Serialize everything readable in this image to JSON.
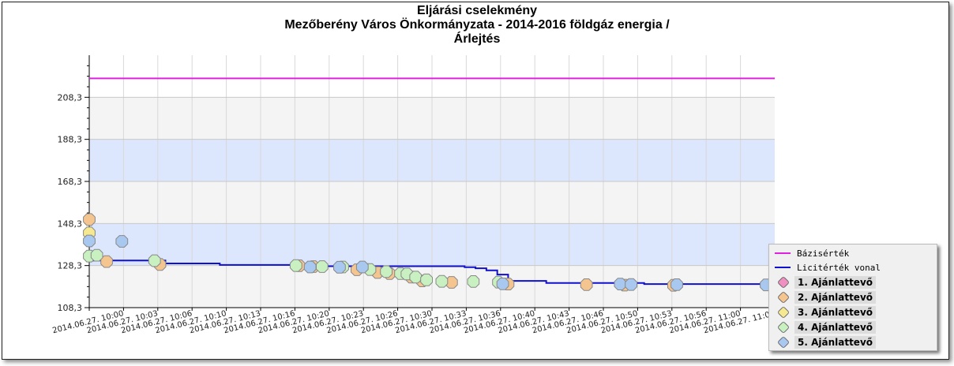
{
  "title": {
    "line1": "Eljárási cselekmény",
    "line2": "Mezőberény Város Önkormányzata - 2014-2016 földgáz energia /",
    "line3": "Árlejtés"
  },
  "chart_data": {
    "type": "line",
    "ylim": [
      108.3,
      228.3
    ],
    "yticks": [
      "108,3",
      "128,3",
      "148,3",
      "168,3",
      "188,3",
      "208,3"
    ],
    "ytick_values": [
      108.3,
      128.3,
      148.3,
      168.3,
      188.3,
      208.3
    ],
    "xticks": [
      "2014.06.27. 10:00",
      "2014.06.27. 10:03",
      "2014.06.27. 10:06",
      "2014.06.27. 10:10",
      "2014.06.27. 10:13",
      "2014.06.27. 10:16",
      "2014.06.27. 10:20",
      "2014.06.27. 10:23",
      "2014.06.27. 10:26",
      "2014.06.27. 10:30",
      "2014.06.27. 10:33",
      "2014.06.27. 10:36",
      "2014.06.27. 10:40",
      "2014.06.27. 10:43",
      "2014.06.27. 10:46",
      "2014.06.27. 10:50",
      "2014.06.27. 10:53",
      "2014.06.27. 10:56",
      "2014.06.27. 11:00",
      "2014.06.27. 11:03"
    ],
    "xrange_minutes": [
      0,
      63
    ],
    "base_value": 217.3,
    "licit_line": [
      [
        0,
        130.7
      ],
      [
        7,
        130.7
      ],
      [
        7,
        129.3
      ],
      [
        12,
        129.3
      ],
      [
        12,
        128.6
      ],
      [
        20,
        128.6
      ],
      [
        20,
        128.0
      ],
      [
        34.5,
        128.0
      ],
      [
        34.5,
        127.5
      ],
      [
        35.5,
        127.5
      ],
      [
        35.5,
        127.0
      ],
      [
        36.5,
        127.0
      ],
      [
        36.5,
        126.0
      ],
      [
        37.5,
        126.0
      ],
      [
        37.5,
        124.0
      ],
      [
        38.5,
        124.0
      ],
      [
        38.5,
        121.0
      ],
      [
        42,
        121.0
      ],
      [
        42,
        120.0
      ],
      [
        51,
        120.0
      ],
      [
        51,
        119.5
      ],
      [
        63,
        119.5
      ]
    ],
    "series": [
      {
        "name": "Bázisérték",
        "color": "#e020e0"
      },
      {
        "name": "Licitérték vonal",
        "color": "#1010d0"
      },
      {
        "name": "1. Ajánlattevő",
        "color": "#f090c0",
        "points": []
      },
      {
        "name": "2. Ajánlattevő",
        "color": "#f5c590",
        "points": [
          [
            0,
            150.2
          ],
          [
            1.6,
            130.2
          ],
          [
            6.5,
            128.8
          ],
          [
            19.3,
            128.2
          ],
          [
            20.6,
            127.8
          ],
          [
            24.6,
            126.3
          ],
          [
            26.5,
            125.0
          ],
          [
            27.6,
            124.5
          ],
          [
            29.6,
            122.8
          ],
          [
            30.6,
            121.0
          ],
          [
            33.3,
            120.3
          ],
          [
            38.5,
            119.5
          ],
          [
            45.7,
            119.2
          ],
          [
            49.2,
            119.0
          ],
          [
            53.7,
            118.9
          ]
        ]
      },
      {
        "name": "3. Ajánlattevő",
        "color": "#f5e890",
        "points": [
          [
            0,
            143.8
          ]
        ]
      },
      {
        "name": "4. Ajánlattevő",
        "color": "#c8f0c0",
        "points": [
          [
            0,
            132.8
          ],
          [
            0.7,
            133.2
          ],
          [
            6.0,
            130.6
          ],
          [
            19.0,
            128.3
          ],
          [
            21.4,
            127.8
          ],
          [
            23.3,
            127.6
          ],
          [
            25.8,
            126.4
          ],
          [
            27.3,
            125.4
          ],
          [
            28.6,
            124.5
          ],
          [
            29.2,
            124.3
          ],
          [
            30.0,
            122.8
          ],
          [
            31.0,
            121.5
          ],
          [
            32.4,
            120.8
          ],
          [
            35.3,
            120.7
          ],
          [
            37.6,
            120.4
          ]
        ]
      },
      {
        "name": "5. Ajánlattevő",
        "color": "#a8c8f0",
        "points": [
          [
            0,
            140.0
          ],
          [
            3.0,
            139.8
          ],
          [
            20.3,
            127.6
          ],
          [
            23.0,
            127.5
          ],
          [
            25.1,
            127.6
          ],
          [
            38.0,
            119.6
          ],
          [
            48.8,
            119.5
          ],
          [
            49.8,
            119.3
          ],
          [
            54.0,
            119.2
          ],
          [
            62.2,
            119.1
          ]
        ]
      }
    ],
    "legend_position": "bottom-right",
    "grid": true
  }
}
